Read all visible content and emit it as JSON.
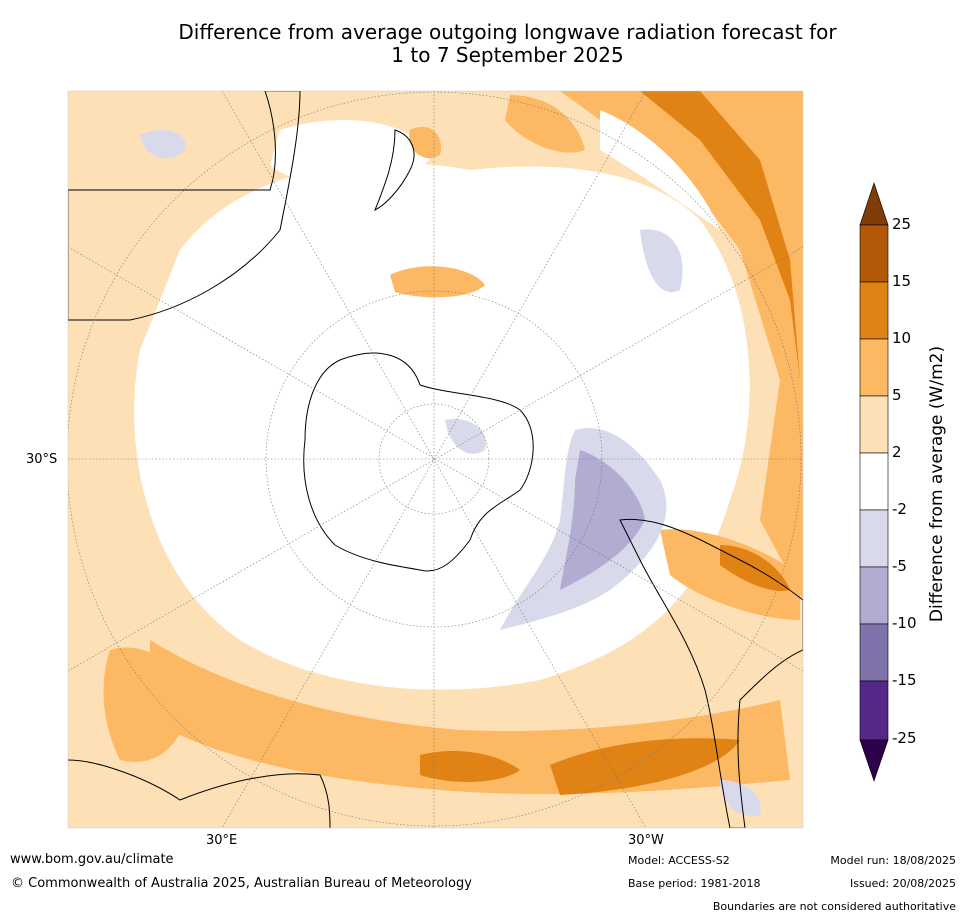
{
  "title_line1": "Difference from average outgoing longwave radiation forecast for",
  "title_line2": "1 to 7 September 2025",
  "map_labels": {
    "lat": "30°S",
    "lon_east": "30°E",
    "lon_west": "30°W"
  },
  "colorbar": {
    "title": "Difference from average (W/m2)",
    "ticks": [
      "25",
      "15",
      "10",
      "5",
      "2",
      "-2",
      "-5",
      "-10",
      "-15",
      "-25"
    ],
    "colors": {
      "over": "#7f3b08",
      "15_25": "#b35806",
      "10_15": "#e08214",
      "5_10": "#fdb863",
      "2_5": "#fee0b6",
      "neutral": "#ffffff",
      "m5_m2": "#d8daeb",
      "m10_m5": "#b2abd2",
      "m15_m10": "#8073ac",
      "m25_m15": "#542788",
      "under": "#2d004b"
    }
  },
  "footer": {
    "website": "www.bom.gov.au/climate",
    "copyright": "© Commonwealth of Australia 2025, Australian Bureau of Meteorology",
    "model": "Model: ACCESS-S2",
    "base_period": "Base period: 1981-2018",
    "model_run": "Model run: 18/08/2025",
    "issued": "Issued: 20/08/2025",
    "disclaimer": "Boundaries are not considered authoritative"
  }
}
